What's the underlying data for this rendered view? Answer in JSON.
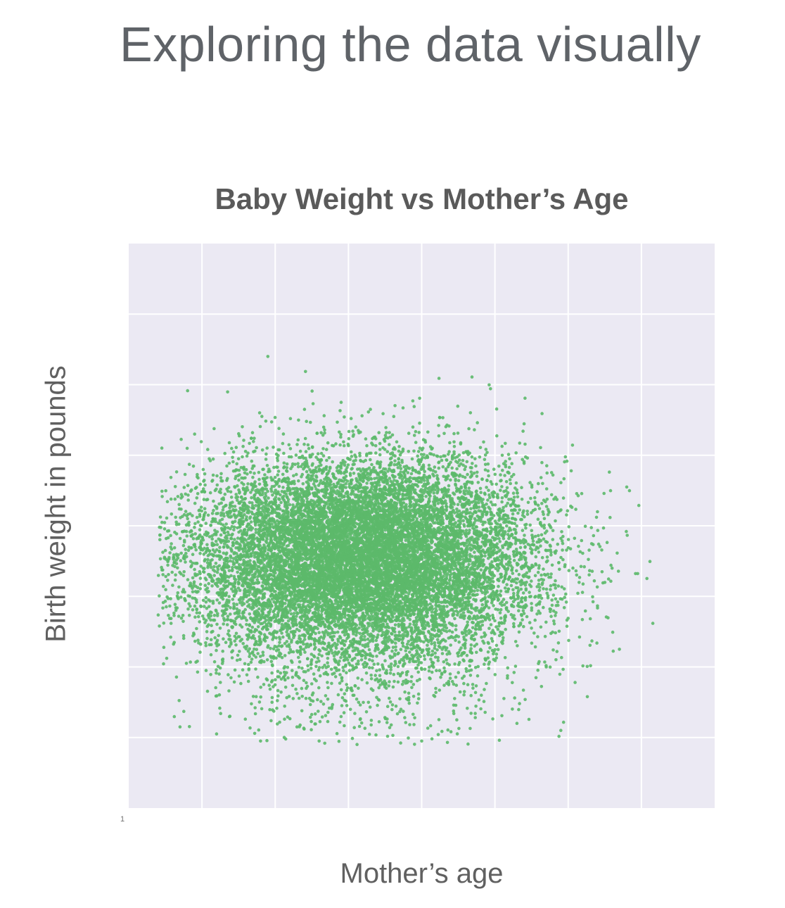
{
  "slide": {
    "title": "Exploring the data visually"
  },
  "chart_data": {
    "type": "scatter",
    "title": "Baby Weight vs Mother’s Age",
    "xlabel": "Mother’s age",
    "ylabel": "Birth weight in pounds",
    "xlim": [
      12,
      52
    ],
    "ylim": [
      0,
      16
    ],
    "grid": true,
    "tick_labels_visible": false,
    "stray_tick_label": "1",
    "point_color": "#5cb96a",
    "background_color": "#ebe9f3",
    "grid_color": "#ffffff",
    "series": [
      {
        "points": [
          [
            14.5,
            7.3
          ],
          [
            16.5,
            10.6
          ],
          [
            17.5,
            9.9
          ],
          [
            19.5,
            9.9
          ],
          [
            21.5,
            12.8
          ],
          [
            24.0,
            11.3
          ],
          [
            26.5,
            11.5
          ],
          [
            27.5,
            10.8
          ],
          [
            28.5,
            11.3
          ],
          [
            33.5,
            9.4
          ],
          [
            37.5,
            10.0
          ],
          [
            38.0,
            9.9
          ],
          [
            44.0,
            8.4
          ],
          [
            45.0,
            6.8
          ],
          [
            46.0,
            9.1
          ],
          [
            45.5,
            4.5
          ],
          [
            15.5,
            2.3
          ],
          [
            18.0,
            2.1
          ],
          [
            21.0,
            1.9
          ],
          [
            25.0,
            1.9
          ],
          [
            32.0,
            1.9
          ],
          [
            38.5,
            2.4
          ],
          [
            41.5,
            2.2
          ],
          [
            35.5,
            3.4
          ]
        ],
        "cluster": {
          "count": 14000,
          "center_age": 28,
          "age_sd": 5.8,
          "center_weight": 7.3,
          "weight_sd": 1.3,
          "age_range_observed": [
            14,
            49
          ],
          "weight_range_observed": [
            1.8,
            12.9
          ]
        }
      }
    ]
  }
}
